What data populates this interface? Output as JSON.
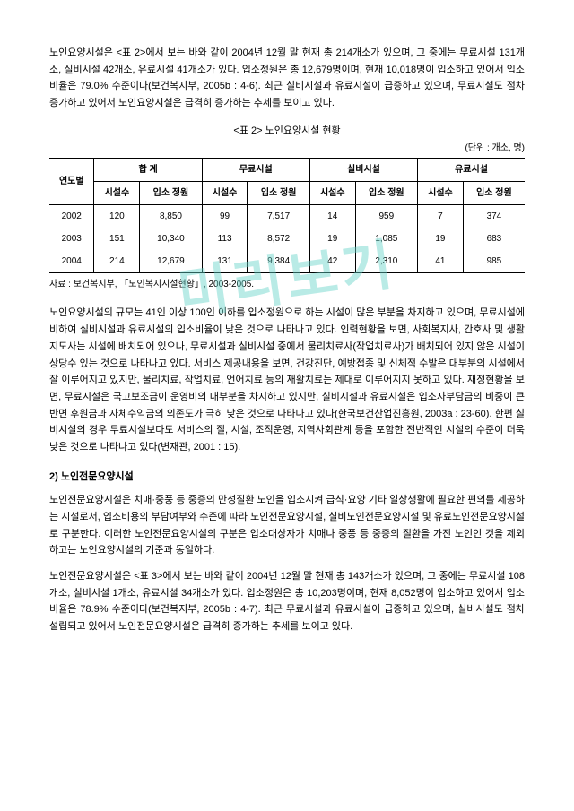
{
  "watermark": "미리보기",
  "para1": "노인요양시설은 <표 2>에서 보는 바와 같이 2004년 12월 말 현재 총 214개소가 있으며, 그 중에는 무료시설 131개소, 실비시설 42개소, 유료시설 41개소가 있다. 입소정원은 총 12,679명이며, 현재 10,018명이 입소하고 있어서 입소비율은 79.0% 수준이다(보건복지부, 2005b : 4-6). 최근 실비시설과 유료시설이 급증하고 있으며, 무료시설도 점차 증가하고 있어서 노인요양시설은 급격히 증가하는 추세를 보이고 있다.",
  "table": {
    "title": "<표 2> 노인요양시설 현황",
    "unit": "(단위 : 개소, 명)",
    "col_year": "연도별",
    "groups": [
      "합  계",
      "무료시설",
      "실비시설",
      "유료시설"
    ],
    "subcols": [
      "시설수",
      "입소\n정원"
    ],
    "rows": [
      {
        "year": "2002",
        "cells": [
          "120",
          "8,850",
          "99",
          "7,517",
          "14",
          "959",
          "7",
          "374"
        ]
      },
      {
        "year": "2003",
        "cells": [
          "151",
          "10,340",
          "113",
          "8,572",
          "19",
          "1,085",
          "19",
          "683"
        ]
      },
      {
        "year": "2004",
        "cells": [
          "214",
          "12,679",
          "131",
          "9,384",
          "42",
          "2,310",
          "41",
          "985"
        ]
      }
    ],
    "source": "자료 : 보건복지부, 「노인복지시설현황」, 2003-2005."
  },
  "para2": "노인요양시설의 규모는 41인 이상 100인 이하를 입소정원으로 하는 시설이 많은 부분을 차지하고 있으며, 무료시설에 비하여 실비시설과 유료시설의 입소비율이 낮은 것으로 나타나고 있다. 인력현황을 보면, 사회복지사, 간호사 및 생활지도사는 시설에 배치되어 있으나, 무료시설과 실비시설 중에서 물리치료사(작업치료사)가 배치되어 있지 않은 시설이 상당수 있는 것으로 나타나고 있다. 서비스 제공내용을 보면, 건강진단, 예방접종 및 신체적 수발은 대부분의 시설에서 잘 이루어지고 있지만, 물리치료, 작업치료, 언어치료 등의 재활치료는 제대로 이루어지지 못하고 있다. 재정현황을 보면, 무료시설은 국고보조금이 운영비의 대부분을 차지하고 있지만, 실비시설과 유료시설은 입소자부담금의 비중이 큰 반면 후원금과 자체수익금의 의존도가 극히 낮은 것으로 나타나고 있다(한국보건산업진흥원, 2003a : 23-60). 한편 실비시설의 경우 무료시설보다도 서비스의 질, 시설, 조직운영, 지역사회관계 등을 포함한 전반적인 시설의 수준이 더욱 낮은 것으로 나타나고 있다(변재관, 2001 : 15).",
  "section2_head": "2) 노인전문요양시설",
  "para3": "노인전문요양시설은 치매·중풍 등 중증의 만성질환 노인을 입소시켜 급식·요양 기타 일상생활에 필요한 편의를 제공하는 시설로서, 입소비용의 부담여부와 수준에 따라 노인전문요양시설, 실비노인전문요양시설 및 유료노인전문요양시설로 구분한다. 이러한 노인전문요양시설의 구분은 입소대상자가 치매나 중풍 등 중증의 질환을 가진 노인인 것을 제외하고는 노인요양시설의 기준과 동일하다.",
  "para4": "노인전문요양시설은 <표 3>에서 보는 바와 같이 2004년 12월 말 현재 총 143개소가 있으며, 그 중에는 무료시설 108개소, 실비시설 1개소, 유료시설 34개소가 있다. 입소정원은 총 10,203명이며, 현재 8,052명이 입소하고 있어서 입소비율은 78.9% 수준이다(보건복지부, 2005b : 4-7). 최근 무료시설과 유료시설이 급증하고 있으며, 실비시설도 점차 설립되고 있어서 노인전문요양시설은 급격히 증가하는 추세를 보이고 있다."
}
